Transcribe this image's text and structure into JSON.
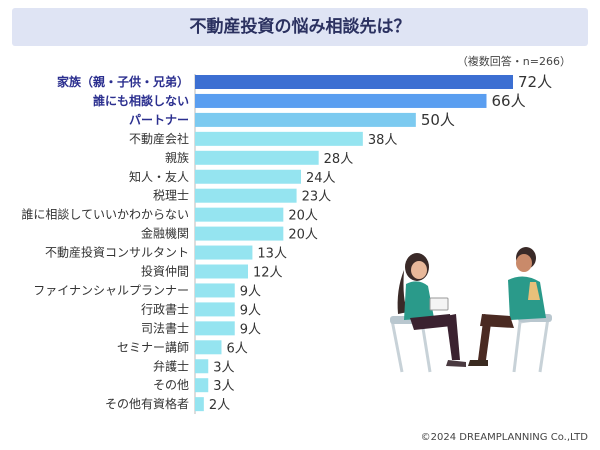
{
  "title": "不動産投資の悩み相談先は？",
  "note": "（複数回答・n=266）",
  "copyright": "©2024 DREAMPLANNING Co.,LTD",
  "colors": {
    "title_bg": "#dfe4f4",
    "title_text": "#2b3160",
    "bar_top": "#3c6fd2",
    "bar_second": "#5a9ef0",
    "bar_third": "#7ccaf0",
    "bar_default": "#95e4f0",
    "highlight_label": "#2b2f8f",
    "axis": "#bbbbbb"
  },
  "chart_data": {
    "type": "bar",
    "orientation": "horizontal",
    "unit": "人",
    "xlim": [
      0,
      72
    ],
    "categories": [
      "家族（親・子供・兄弟）",
      "誰にも相談しない",
      "パートナー",
      "不動産会社",
      "親族",
      "知人・友人",
      "税理士",
      "誰に相談していいかわからない",
      "金融機関",
      "不動産投資コンサルタント",
      "投資仲間",
      "ファイナンシャルプランナー",
      "行政書士",
      "司法書士",
      "セミナー講師",
      "弁護士",
      "その他",
      "その他有資格者"
    ],
    "values": [
      72,
      66,
      50,
      38,
      28,
      24,
      23,
      20,
      20,
      13,
      12,
      9,
      9,
      9,
      6,
      3,
      3,
      2
    ],
    "value_labels": [
      "72人",
      "66人",
      "50人",
      "38人",
      "28人",
      "24人",
      "23人",
      "20人",
      "20人",
      "13人",
      "12人",
      "9人",
      "9人",
      "9人",
      "6人",
      "3人",
      "3人",
      "2人"
    ],
    "highlighted": [
      0,
      1,
      2
    ]
  }
}
